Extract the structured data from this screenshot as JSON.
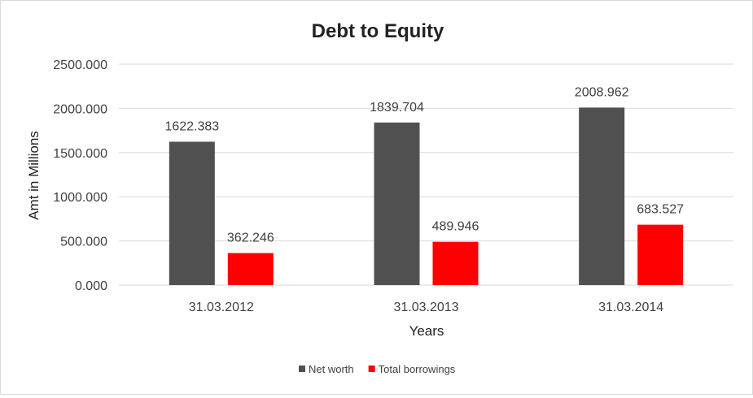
{
  "chart_data": {
    "type": "bar",
    "title": "Debt to Equity",
    "xlabel": "Years",
    "ylabel": "Amt in Millions",
    "categories": [
      "31.03.2012",
      "31.03.2013",
      "31.03.2014"
    ],
    "series": [
      {
        "name": "Net worth",
        "values": [
          1622.383,
          1839.704,
          2008.962
        ],
        "color": "#505050"
      },
      {
        "name": "Total borrowings",
        "values": [
          362.246,
          489.946,
          683.527
        ],
        "color": "#ff0000"
      }
    ],
    "ylim": [
      0,
      2500
    ],
    "yticks": [
      "0.000",
      "500.000",
      "1000.000",
      "1500.000",
      "2000.000",
      "2500.000"
    ],
    "grid": true,
    "legend_position": "bottom"
  }
}
